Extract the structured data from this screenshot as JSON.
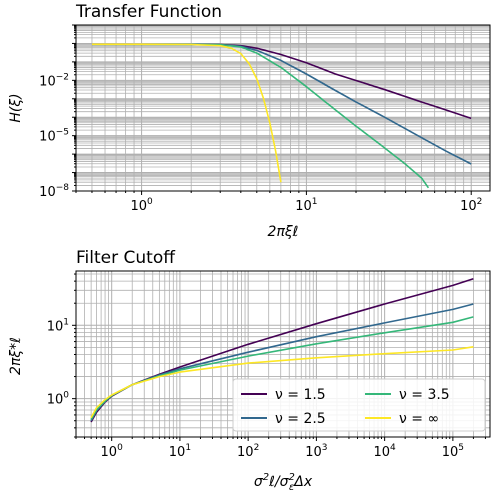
{
  "chart_data": [
    {
      "type": "line",
      "title": "Transfer Function",
      "xlabel": "2πξℓ",
      "ylabel": "H(ξ)",
      "xscale": "log",
      "yscale": "log",
      "xlim": [
        0.4,
        130
      ],
      "ylim": [
        1e-08,
        10
      ],
      "grid": true,
      "x_ticks": [
        {
          "v": 1,
          "label": "10",
          "exp": "0"
        },
        {
          "v": 10,
          "label": "10",
          "exp": "1"
        },
        {
          "v": 100,
          "label": "10",
          "exp": "2"
        }
      ],
      "y_ticks": [
        {
          "v": 1e-08,
          "label": "10",
          "exp": "−8"
        },
        {
          "v": 1e-05,
          "label": "10",
          "exp": "−5"
        },
        {
          "v": 0.01,
          "label": "10",
          "exp": "−2"
        }
      ],
      "series": [
        {
          "name": "ν = 1.5",
          "color": "#440154",
          "x": [
            0.5,
            1,
            2,
            3,
            4,
            5,
            7,
            10,
            15,
            20,
            30,
            50,
            70,
            100
          ],
          "y": [
            0.9,
            0.9,
            0.89,
            0.87,
            0.75,
            0.55,
            0.25,
            0.09,
            0.022,
            0.0098,
            0.0031,
            0.00067,
            0.00025,
            8.6e-05
          ]
        },
        {
          "name": "ν = 2.5",
          "color": "#31688e",
          "x": [
            0.5,
            1,
            2,
            3,
            4,
            5,
            7,
            10,
            15,
            20,
            30,
            50,
            70,
            100
          ],
          "y": [
            0.9,
            0.9,
            0.89,
            0.86,
            0.7,
            0.42,
            0.12,
            0.022,
            0.0028,
            0.00068,
            9.8e-05,
            7.8e-06,
            1.5e-06,
            2.9e-07
          ]
        },
        {
          "name": "ν = 3.5",
          "color": "#35b779",
          "x": [
            0.5,
            1,
            2,
            3,
            4,
            5,
            7,
            10,
            15,
            20,
            30,
            40,
            50,
            55
          ],
          "y": [
            0.9,
            0.9,
            0.89,
            0.85,
            0.65,
            0.3,
            0.05,
            0.0045,
            0.00025,
            3.3e-05,
            2.1e-06,
            2.8e-07,
            5e-08,
            1.5e-08
          ]
        },
        {
          "name": "ν = ∞",
          "color": "#fde725",
          "x": [
            0.5,
            1,
            2,
            3,
            3.5,
            4,
            4.5,
            5,
            5.5,
            6,
            6.5,
            7
          ],
          "y": [
            0.9,
            0.9,
            0.88,
            0.75,
            0.55,
            0.28,
            0.08,
            0.012,
            0.001,
            5e-05,
            1.5e-06,
            3e-08
          ]
        }
      ]
    },
    {
      "type": "line",
      "title": "Filter Cutoff",
      "xlabel": "σ²ℓ/σ²εΔx",
      "ylabel": "2πξ*ℓ",
      "xscale": "log",
      "yscale": "log",
      "xlim": [
        0.3,
        350000
      ],
      "ylim": [
        0.3,
        55
      ],
      "grid": true,
      "x_ticks": [
        {
          "v": 1,
          "label": "10",
          "exp": "0"
        },
        {
          "v": 10,
          "label": "10",
          "exp": "1"
        },
        {
          "v": 100,
          "label": "10",
          "exp": "2"
        },
        {
          "v": 1000,
          "label": "10",
          "exp": "3"
        },
        {
          "v": 10000,
          "label": "10",
          "exp": "4"
        },
        {
          "v": 100000,
          "label": "10",
          "exp": "5"
        }
      ],
      "y_ticks": [
        {
          "v": 1,
          "label": "10",
          "exp": "0"
        },
        {
          "v": 10,
          "label": "10",
          "exp": "1"
        }
      ],
      "legend": {
        "loc": "lower right",
        "ncol": 2
      },
      "series": [
        {
          "name": "ν = 1.5",
          "color": "#440154",
          "x": [
            0.5,
            0.6,
            0.8,
            1,
            2,
            5,
            10,
            100,
            1000,
            10000,
            100000,
            200000
          ],
          "y": [
            0.48,
            0.65,
            0.9,
            1.08,
            1.55,
            2.15,
            2.7,
            5.5,
            10.5,
            19.5,
            35,
            43
          ]
        },
        {
          "name": "ν = 2.5",
          "color": "#31688e",
          "x": [
            0.5,
            0.6,
            0.8,
            1,
            2,
            5,
            10,
            100,
            1000,
            10000,
            100000,
            200000
          ],
          "y": [
            0.5,
            0.68,
            0.92,
            1.1,
            1.55,
            2.1,
            2.55,
            4.3,
            7,
            10.8,
            16.5,
            19.5
          ]
        },
        {
          "name": "ν = 3.5",
          "color": "#35b779",
          "x": [
            0.5,
            0.6,
            0.8,
            1,
            2,
            5,
            10,
            100,
            1000,
            10000,
            100000,
            200000
          ],
          "y": [
            0.52,
            0.7,
            0.93,
            1.1,
            1.55,
            2.05,
            2.45,
            3.8,
            5.6,
            7.9,
            11,
            13
          ]
        },
        {
          "name": "ν = ∞",
          "color": "#fde725",
          "x": [
            0.5,
            0.6,
            0.8,
            1,
            2,
            5,
            10,
            100,
            1000,
            10000,
            100000,
            200000
          ],
          "y": [
            0.55,
            0.75,
            0.97,
            1.12,
            1.55,
            2,
            2.3,
            3.05,
            3.6,
            4.1,
            4.6,
            5.1
          ]
        }
      ]
    }
  ]
}
